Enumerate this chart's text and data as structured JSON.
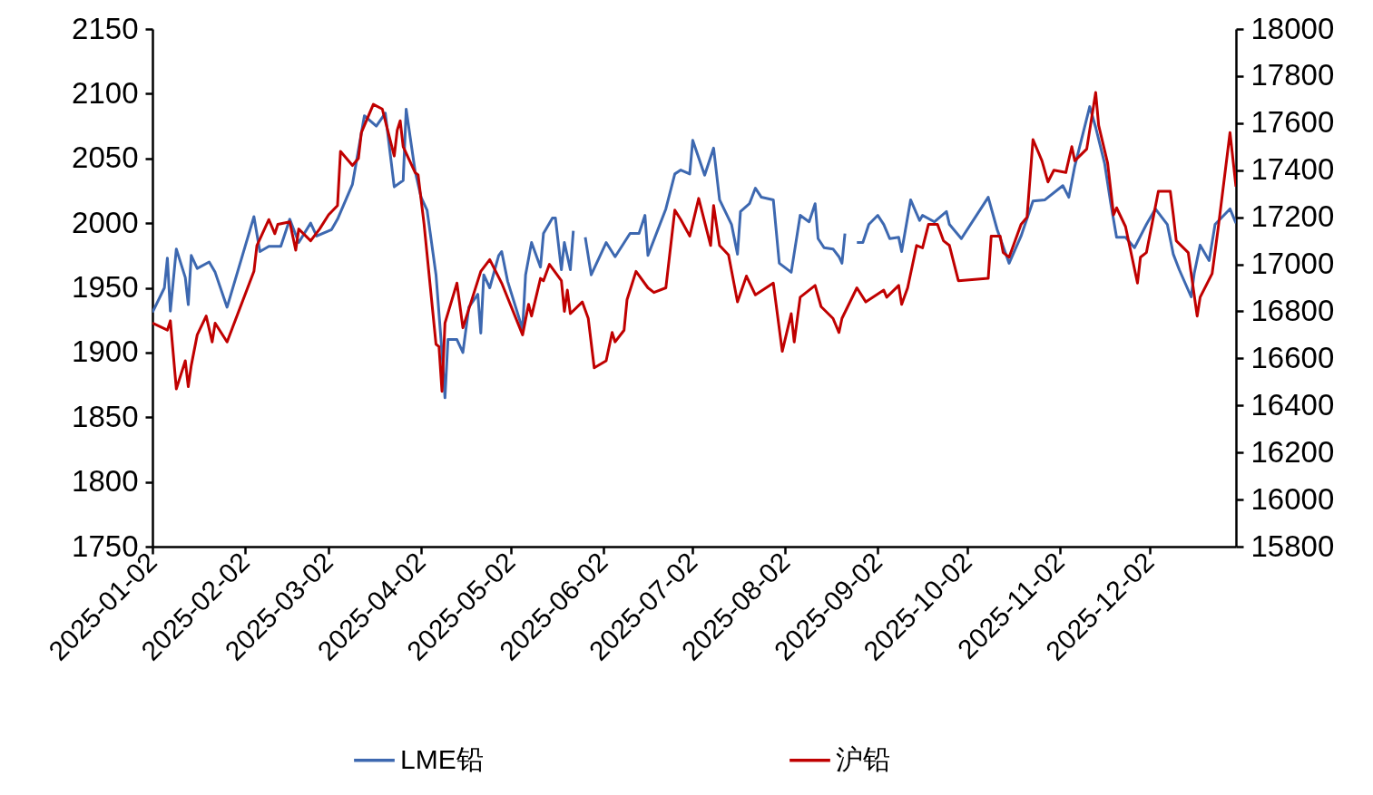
{
  "chart_data": {
    "type": "line",
    "xlim": [
      "2025-01-02",
      "2025-12-31"
    ],
    "xticks": [
      "2025-01-02",
      "2025-02-02",
      "2025-03-02",
      "2025-04-02",
      "2025-05-02",
      "2025-06-02",
      "2025-07-02",
      "2025-08-02",
      "2025-09-02",
      "2025-10-02",
      "2025-11-02",
      "2025-12-02"
    ],
    "ylim": [
      1750,
      2150
    ],
    "yticks": [
      1750,
      1800,
      1850,
      1900,
      1950,
      2000,
      2050,
      2100,
      2150
    ],
    "y2lim": [
      15800,
      18000
    ],
    "y2ticks": [
      15800,
      16000,
      16200,
      16400,
      16600,
      16800,
      17000,
      17200,
      17400,
      17600,
      17800,
      18000
    ],
    "legend": "bottom",
    "grid": false,
    "marker": "none",
    "line_style": "solid",
    "series": [
      {
        "name": "LME铅",
        "color": "#3d68b0",
        "x": [
          "2025-01-02",
          "2025-01-06",
          "2025-01-07",
          "2025-01-08",
          "2025-01-10",
          "2025-01-13",
          "2025-01-14",
          "2025-01-15",
          "2025-01-17",
          "2025-01-21",
          "2025-01-23",
          "2025-01-27",
          "2025-02-05",
          "2025-02-07",
          "2025-02-10",
          "2025-02-14",
          "2025-02-17",
          "2025-02-20",
          "2025-02-24",
          "2025-02-26",
          "2025-03-03",
          "2025-03-05",
          "2025-03-10",
          "2025-03-14",
          "2025-03-18",
          "2025-03-21",
          "2025-03-24",
          "2025-03-27",
          "2025-03-28",
          "2025-03-31",
          "2025-04-02",
          "2025-04-04",
          "2025-04-07",
          "2025-04-09",
          "2025-04-10",
          "2025-04-11",
          "2025-04-14",
          "2025-04-16",
          "2025-04-18",
          "2025-04-21",
          "2025-04-22",
          "2025-04-23",
          "2025-04-25",
          "2025-04-28",
          "2025-04-29",
          "2025-05-01",
          "2025-05-06",
          "2025-05-07",
          "2025-05-09",
          "2025-05-12",
          "2025-05-13",
          "2025-05-16",
          "2025-05-17",
          "2025-05-19",
          "2025-05-20",
          "2025-05-22",
          "2025-05-23",
          "2025-05-26",
          "2025-05-27",
          "2025-05-29",
          "2025-06-03",
          "2025-06-06",
          "2025-06-11",
          "2025-06-14",
          "2025-06-16",
          "2025-06-17",
          "2025-06-23",
          "2025-06-26",
          "2025-06-28",
          "2025-07-01",
          "2025-07-02",
          "2025-07-06",
          "2025-07-09",
          "2025-07-11",
          "2025-07-15",
          "2025-07-17",
          "2025-07-18",
          "2025-07-21",
          "2025-07-23",
          "2025-07-25",
          "2025-07-29",
          "2025-07-31",
          "2025-08-04",
          "2025-08-07",
          "2025-08-10",
          "2025-08-12",
          "2025-08-13",
          "2025-08-15",
          "2025-08-18",
          "2025-08-20",
          "2025-08-21",
          "2025-08-22",
          "2025-08-25",
          "2025-08-26",
          "2025-08-28",
          "2025-08-30",
          "2025-09-02",
          "2025-09-04",
          "2025-09-06",
          "2025-09-09",
          "2025-09-10",
          "2025-09-13",
          "2025-09-16",
          "2025-09-17",
          "2025-09-21",
          "2025-09-25",
          "2025-09-26",
          "2025-09-30",
          "2025-10-09",
          "2025-10-12",
          "2025-10-16",
          "2025-10-20",
          "2025-10-24",
          "2025-10-28",
          "2025-11-03",
          "2025-11-05",
          "2025-11-07",
          "2025-11-12",
          "2025-11-14",
          "2025-11-17",
          "2025-11-19",
          "2025-11-21",
          "2025-11-24",
          "2025-11-27",
          "2025-12-01",
          "2025-12-04",
          "2025-12-08",
          "2025-12-10",
          "2025-12-12",
          "2025-12-16",
          "2025-12-17",
          "2025-12-19",
          "2025-12-22",
          "2025-12-24",
          "2025-12-29",
          "2025-12-31"
        ],
        "values": [
          1931,
          1950,
          1973,
          1932,
          1980,
          1958,
          1937,
          1975,
          1965,
          1970,
          1962,
          1935,
          2005,
          1978,
          1982,
          1982,
          2003,
          1985,
          2000,
          1990,
          1995,
          2003,
          2030,
          2083,
          2075,
          2085,
          2028,
          2033,
          2088,
          2040,
          2020,
          2010,
          1960,
          1900,
          1865,
          1910,
          1910,
          1900,
          1935,
          1945,
          1915,
          1960,
          1950,
          1975,
          1978,
          1955,
          1918,
          1960,
          1985,
          1966,
          1992,
          2004,
          2004,
          1964,
          1985,
          1964,
          1994,
          null,
          1989,
          1960,
          1985,
          1974,
          1992,
          1992,
          2006,
          1975,
          2011,
          2038,
          2041,
          2038,
          2064,
          2037,
          2058,
          2018,
          1999,
          1976,
          2009,
          2015,
          2027,
          2020,
          2018,
          1969,
          1962,
          2006,
          2001,
          2015,
          1988,
          1981,
          1980,
          1974,
          1969,
          1992,
          null,
          1985,
          1985,
          1999,
          2006,
          1999,
          1988,
          1989,
          1978,
          2018,
          2002,
          2006,
          2001,
          2009,
          1999,
          1988,
          2020,
          1995,
          1969,
          1990,
          2017,
          2018,
          2029,
          2020,
          2044,
          2090,
          2074,
          2046,
          2016,
          1989,
          1989,
          1981,
          1999,
          2011,
          1999,
          1976,
          1964,
          1943,
          1961,
          1983,
          1971,
          1999,
          2011,
          2000
        ]
      },
      {
        "name": "沪铅",
        "color": "#c00000",
        "axis": "y2",
        "x": [
          "2025-01-02",
          "2025-01-07",
          "2025-01-08",
          "2025-01-10",
          "2025-01-13",
          "2025-01-14",
          "2025-01-15",
          "2025-01-17",
          "2025-01-20",
          "2025-01-22",
          "2025-01-23",
          "2025-01-27",
          "2025-02-05",
          "2025-02-06",
          "2025-02-10",
          "2025-02-12",
          "2025-02-13",
          "2025-02-17",
          "2025-02-19",
          "2025-02-20",
          "2025-02-24",
          "2025-02-27",
          "2025-03-02",
          "2025-03-05",
          "2025-03-06",
          "2025-03-10",
          "2025-03-12",
          "2025-03-13",
          "2025-03-17",
          "2025-03-20",
          "2025-03-24",
          "2025-03-25",
          "2025-03-26",
          "2025-03-27",
          "2025-03-31",
          "2025-04-01",
          "2025-04-03",
          "2025-04-07",
          "2025-04-08",
          "2025-04-09",
          "2025-04-10",
          "2025-04-14",
          "2025-04-16",
          "2025-04-18",
          "2025-04-22",
          "2025-04-25",
          "2025-04-29",
          "2025-05-06",
          "2025-05-08",
          "2025-05-09",
          "2025-05-12",
          "2025-05-13",
          "2025-05-15",
          "2025-05-19",
          "2025-05-20",
          "2025-05-21",
          "2025-05-22",
          "2025-05-26",
          "2025-05-28",
          "2025-05-30",
          "2025-06-03",
          "2025-06-05",
          "2025-06-06",
          "2025-06-09",
          "2025-06-10",
          "2025-06-13",
          "2025-06-17",
          "2025-06-19",
          "2025-06-23",
          "2025-06-26",
          "2025-06-28",
          "2025-07-01",
          "2025-07-04",
          "2025-07-08",
          "2025-07-09",
          "2025-07-11",
          "2025-07-14",
          "2025-07-17",
          "2025-07-20",
          "2025-07-23",
          "2025-07-29",
          "2025-08-01",
          "2025-08-04",
          "2025-08-05",
          "2025-08-07",
          "2025-08-12",
          "2025-08-14",
          "2025-08-18",
          "2025-08-20",
          "2025-08-21",
          "2025-08-26",
          "2025-08-29",
          "2025-09-04",
          "2025-09-05",
          "2025-09-09",
          "2025-09-10",
          "2025-09-12",
          "2025-09-15",
          "2025-09-17",
          "2025-09-19",
          "2025-09-22",
          "2025-09-24",
          "2025-09-26",
          "2025-09-29",
          "2025-10-09",
          "2025-10-10",
          "2025-10-13",
          "2025-10-14",
          "2025-10-16",
          "2025-10-20",
          "2025-10-22",
          "2025-10-24",
          "2025-10-27",
          "2025-10-29",
          "2025-10-31",
          "2025-11-04",
          "2025-11-06",
          "2025-11-07",
          "2025-11-11",
          "2025-11-14",
          "2025-11-15",
          "2025-11-18",
          "2025-11-20",
          "2025-11-21",
          "2025-11-24",
          "2025-11-28",
          "2025-11-29",
          "2025-12-01",
          "2025-12-05",
          "2025-12-09",
          "2025-12-10",
          "2025-12-11",
          "2025-12-15",
          "2025-12-18",
          "2025-12-19",
          "2025-12-23",
          "2025-12-25",
          "2025-12-29",
          "2025-12-31"
        ],
        "values": [
          16750,
          16720,
          16760,
          16470,
          16590,
          16480,
          16570,
          16700,
          16780,
          16670,
          16750,
          16670,
          16970,
          17080,
          17190,
          17130,
          17170,
          17180,
          17060,
          17150,
          17100,
          17150,
          17210,
          17250,
          17480,
          17420,
          17450,
          17560,
          17680,
          17660,
          17460,
          17570,
          17610,
          17500,
          17390,
          17380,
          17170,
          16660,
          16650,
          16460,
          16750,
          16920,
          16730,
          16810,
          16970,
          17020,
          16920,
          16700,
          16830,
          16780,
          16940,
          16930,
          17000,
          16930,
          16800,
          16890,
          16790,
          16840,
          16770,
          16560,
          16590,
          16710,
          16670,
          16720,
          16850,
          16970,
          16900,
          16880,
          16900,
          17230,
          17190,
          17120,
          17280,
          17080,
          17250,
          17080,
          17040,
          16840,
          16950,
          16870,
          16920,
          16630,
          16790,
          16670,
          16860,
          16910,
          16820,
          16770,
          16710,
          16770,
          16900,
          16840,
          16890,
          16860,
          16910,
          16830,
          16900,
          17080,
          17070,
          17170,
          17170,
          17100,
          17080,
          16930,
          16940,
          17120,
          17120,
          17050,
          17030,
          17170,
          17200,
          17530,
          17440,
          17350,
          17400,
          17390,
          17500,
          17440,
          17490,
          17730,
          17590,
          17430,
          17210,
          17240,
          17160,
          16920,
          17030,
          17050,
          17310,
          17310,
          17210,
          17100,
          17050,
          16780,
          16860,
          16960,
          17150,
          17560,
          17330
        ]
      }
    ]
  }
}
